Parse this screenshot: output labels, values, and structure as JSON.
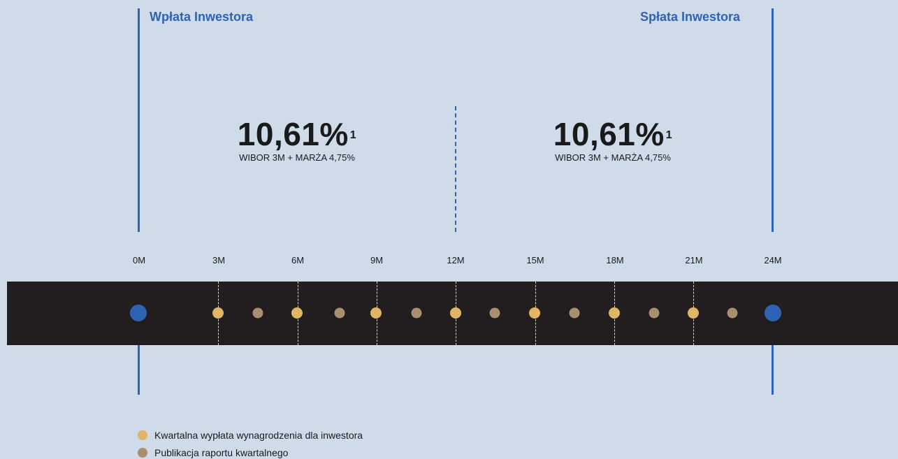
{
  "top_labels": {
    "left": "Wpłata Inwestora",
    "right": "Spłata Inwestora"
  },
  "rates": [
    {
      "value": "10,61%",
      "footnote": "1",
      "subtitle": "WIBOR 3M + MARŻA 4,75%"
    },
    {
      "value": "10,61%",
      "footnote": "1",
      "subtitle": "WIBOR 3M + MARŻA 4,75%"
    }
  ],
  "months": [
    "0M",
    "3M",
    "6M",
    "9M",
    "12M",
    "15M",
    "18M",
    "21M",
    "24M"
  ],
  "timeline": {
    "start_event": "Wpłata Inwestora",
    "end_event": "Spłata Inwestora",
    "payout_months": [
      "3M",
      "6M",
      "9M",
      "12M",
      "15M",
      "18M",
      "21M"
    ],
    "report_events": 7
  },
  "legend": {
    "payout": "Kwartalna wypłata wynagrodzenia dla inwestora",
    "report": "Publikacja raportu kwartalnego"
  },
  "colors": {
    "background": "#cfdbe8",
    "accent_blue": "#2f63b3",
    "band": "#221e1f",
    "payout_dot": "#e0b563",
    "report_dot": "#ab8e6e"
  }
}
